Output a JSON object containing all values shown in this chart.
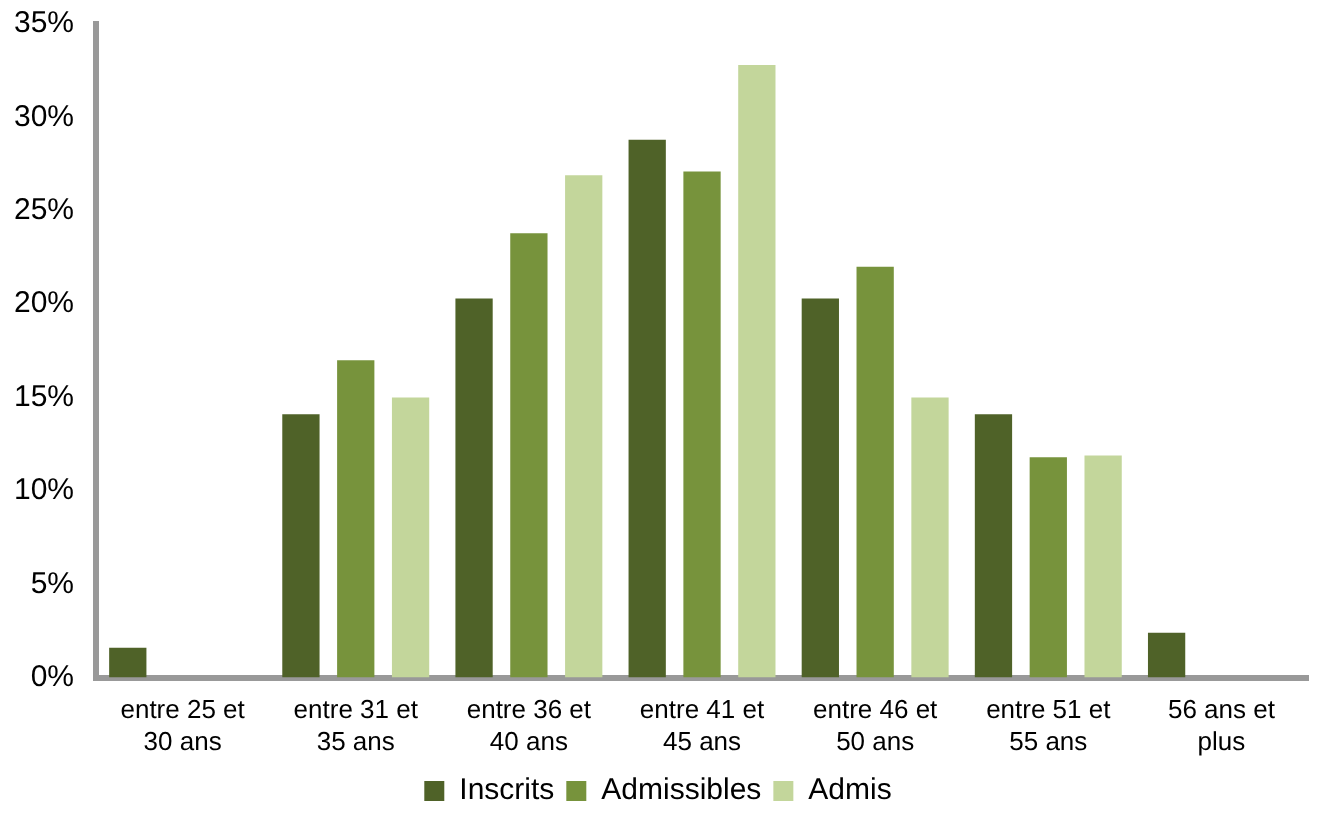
{
  "chart_data": {
    "type": "bar",
    "categories": [
      "entre 25 et 30 ans",
      "entre 31 et 35 ans",
      "entre 36 et 40 ans",
      "entre 41 et 45 ans",
      "entre 46 et 50 ans",
      "entre 51 et 55 ans",
      "56 ans et plus"
    ],
    "series": [
      {
        "name": "Inscrits",
        "color": "#4f6228",
        "values": [
          1.6,
          14.1,
          20.3,
          28.8,
          20.3,
          14.1,
          2.4
        ]
      },
      {
        "name": "Admissibles",
        "color": "#77933c",
        "values": [
          0,
          17.0,
          23.8,
          27.1,
          22.0,
          11.8,
          0
        ]
      },
      {
        "name": "Admis",
        "color": "#c3d69b",
        "values": [
          0,
          15.0,
          26.9,
          32.8,
          15.0,
          11.9,
          0
        ]
      }
    ],
    "ylim": [
      0,
      35
    ],
    "yticks": [
      {
        "value": 0,
        "label": "0%"
      },
      {
        "value": 5,
        "label": "5%"
      },
      {
        "value": 10,
        "label": "10%"
      },
      {
        "value": 15,
        "label": "15%"
      },
      {
        "value": 20,
        "label": "20%"
      },
      {
        "value": 25,
        "label": "25%"
      },
      {
        "value": 30,
        "label": "30%"
      },
      {
        "value": 35,
        "label": "35%"
      }
    ],
    "grid": false,
    "legend": "bottom"
  }
}
